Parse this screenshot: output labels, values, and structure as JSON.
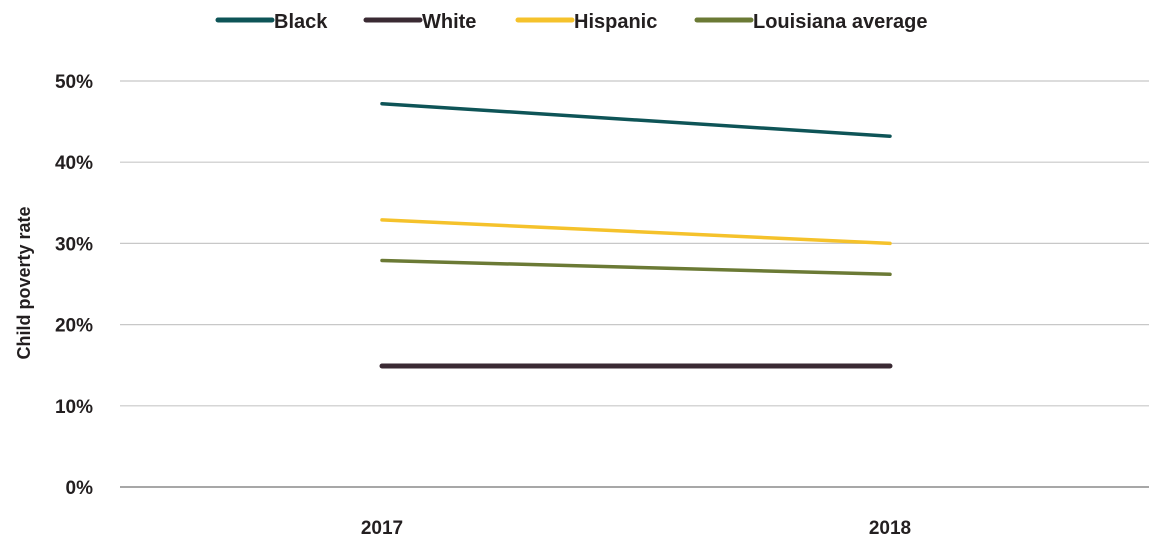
{
  "chart_data": {
    "type": "line",
    "x": [
      "2017",
      "2018"
    ],
    "ylabel": "Child poverty rate",
    "ylim": [
      0,
      50
    ],
    "yticks": [
      0,
      10,
      20,
      30,
      40,
      50
    ],
    "ytick_labels": [
      "0%",
      "10%",
      "20%",
      "30%",
      "40%",
      "50%"
    ],
    "grid": true,
    "legend_position": "top",
    "series": [
      {
        "name": "Black",
        "values": [
          47.2,
          43.2
        ],
        "color": "#0e5457"
      },
      {
        "name": "White",
        "values": [
          14.9,
          14.9
        ],
        "color": "#3a2a33"
      },
      {
        "name": "Hispanic",
        "values": [
          32.9,
          30.0
        ],
        "color": "#f5c22b"
      },
      {
        "name": "Louisiana average",
        "values": [
          27.9,
          26.2
        ],
        "color": "#6b7a35"
      }
    ]
  }
}
